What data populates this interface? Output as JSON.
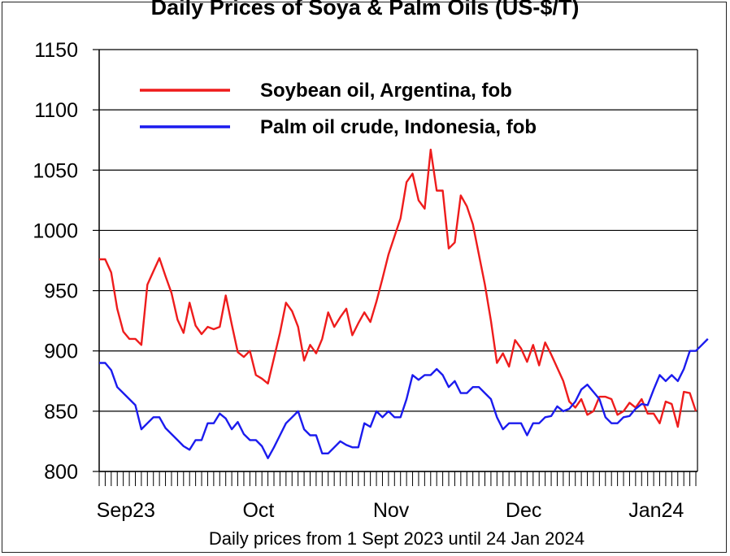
{
  "chart_data": {
    "type": "line",
    "title": "Daily Prices of Soya & Palm Oils (US-$/T)",
    "xlabel": "Daily prices from 1 Sept 2023 until 24 Jan 2024",
    "ylabel": "",
    "ylim": [
      800,
      1150
    ],
    "yticks": [
      "800",
      "850",
      "900",
      "950",
      "1000",
      "1050",
      "1100",
      "1150"
    ],
    "month_labels": [
      "Sep23",
      "Oct",
      "Nov",
      "Dec",
      "Jan24"
    ],
    "month_label_day_index": [
      2,
      24,
      46,
      68,
      90
    ],
    "grid": true,
    "legend_position": "top-left",
    "series": [
      {
        "name": "Soybean oil, Argentina, fob",
        "color": "#ee1c1c",
        "values": [
          976,
          976,
          965,
          935,
          916,
          910,
          910,
          905,
          955,
          966,
          977,
          962,
          948,
          926,
          915,
          940,
          921,
          914,
          920,
          918,
          920,
          946,
          922,
          899,
          895,
          900,
          880,
          877,
          873,
          894,
          915,
          940,
          933,
          920,
          892,
          905,
          898,
          910,
          932,
          920,
          928,
          935,
          913,
          923,
          932,
          924,
          941,
          960,
          980,
          995,
          1010,
          1040,
          1047,
          1025,
          1018,
          1067,
          1033,
          1033,
          985,
          990,
          1029,
          1020,
          1005,
          980,
          955,
          925,
          890,
          898,
          887,
          909,
          902,
          891,
          905,
          888,
          907,
          897,
          886,
          875,
          858,
          853,
          860,
          847,
          850,
          862,
          862,
          860,
          847,
          850,
          857,
          853,
          860,
          848,
          848,
          840,
          858,
          856,
          837,
          866,
          865,
          850
        ]
      },
      {
        "name": "Palm oil crude, Indonesia, fob",
        "color": "#1b1bee",
        "values": [
          890,
          890,
          884,
          870,
          865,
          860,
          855,
          835,
          840,
          845,
          845,
          836,
          831,
          826,
          821,
          818,
          826,
          826,
          840,
          840,
          848,
          844,
          835,
          841,
          831,
          826,
          826,
          821,
          811,
          820,
          830,
          840,
          845,
          850,
          835,
          830,
          830,
          815,
          815,
          820,
          825,
          822,
          820,
          820,
          840,
          837,
          850,
          845,
          850,
          845,
          845,
          860,
          880,
          876,
          880,
          880,
          885,
          880,
          870,
          875,
          865,
          865,
          870,
          870,
          865,
          860,
          845,
          835,
          840,
          840,
          840,
          830,
          840,
          840,
          845,
          846,
          854,
          850,
          852,
          858,
          868,
          872,
          866,
          860,
          845,
          840,
          840,
          845,
          846,
          852,
          856,
          855,
          868,
          880,
          875,
          880,
          875,
          885,
          900,
          900,
          905,
          910
        ]
      }
    ]
  }
}
